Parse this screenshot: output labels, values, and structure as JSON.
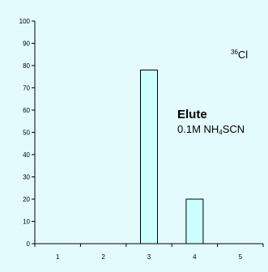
{
  "chart_data": {
    "type": "bar",
    "categories": [
      "1",
      "2",
      "3",
      "4",
      "5"
    ],
    "values": [
      0,
      0,
      78,
      20,
      0
    ],
    "ylim": [
      0,
      100
    ],
    "yticks": [
      "0",
      "10",
      "20",
      "30",
      "40",
      "50",
      "60",
      "70",
      "80",
      "90",
      "100"
    ],
    "grid": false,
    "bar_color": "#ccffff",
    "bar_edge_color": "#000000",
    "background": "#e3fbfd",
    "annotations": {
      "isotope_mass": "36",
      "isotope_symbol": "Cl",
      "elute_title": "Elute",
      "eluent_prefix": "0.1M NH",
      "eluent_subscript": "4",
      "eluent_suffix": "SCN"
    }
  }
}
